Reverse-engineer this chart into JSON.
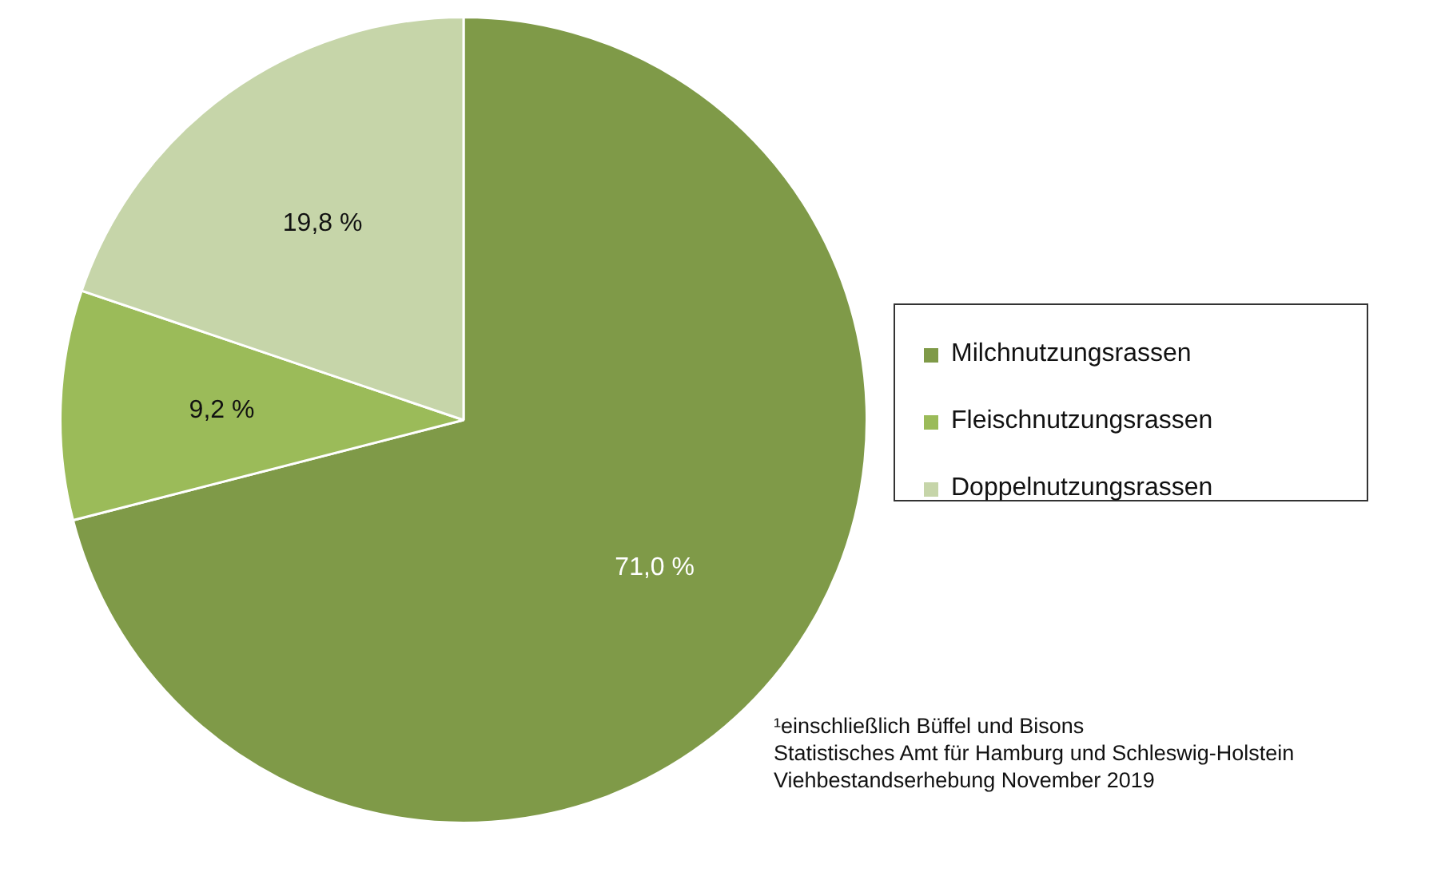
{
  "chart_data": {
    "type": "pie",
    "categories": [
      "Milchnutzungsrassen",
      "Fleischnutzungsrassen",
      "Doppelnutzungsrassen"
    ],
    "values": [
      71.0,
      9.2,
      19.8
    ],
    "colors": [
      "#7f9a48",
      "#9bbb59",
      "#c6d5a9"
    ],
    "value_labels": [
      "71,0 %",
      "9,2 %",
      "19,8 %"
    ],
    "legend": "right",
    "annotations": [
      "¹einschließlich Büffel und Bisons",
      "Statistisches Amt für Hamburg und Schleswig-Holstein",
      "Viehbestandserhebung November 2019"
    ]
  }
}
